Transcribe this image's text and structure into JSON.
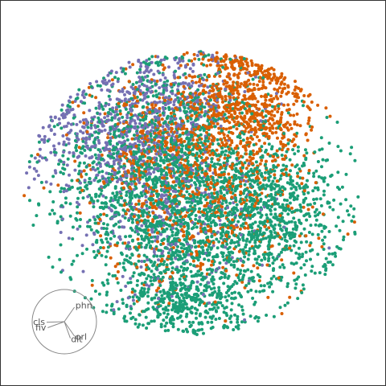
{
  "chart_data": {
    "type": "scatter",
    "grid": false,
    "legend": "none",
    "xlim": [
      -1,
      1
    ],
    "ylim": [
      -1,
      1
    ],
    "series": [
      {
        "color": "#d95f02",
        "clusters": [
          {
            "cx": 0.3,
            "cy": 0.52,
            "sx": 0.18,
            "sy": 0.18,
            "n": 700
          },
          {
            "cx": 0.05,
            "cy": 0.05,
            "sx": 0.3,
            "sy": 0.28,
            "n": 650
          },
          {
            "cx": -0.22,
            "cy": 0.28,
            "sx": 0.22,
            "sy": 0.22,
            "n": 250
          }
        ]
      },
      {
        "color": "#7570b3",
        "clusters": [
          {
            "cx": -0.42,
            "cy": 0.28,
            "sx": 0.24,
            "sy": 0.2,
            "n": 550
          },
          {
            "cx": -0.1,
            "cy": 0.52,
            "sx": 0.2,
            "sy": 0.16,
            "n": 300
          },
          {
            "cx": -0.12,
            "cy": -0.2,
            "sx": 0.24,
            "sy": 0.22,
            "n": 250
          }
        ]
      },
      {
        "color": "#1b9e77",
        "clusters": [
          {
            "cx": 0.05,
            "cy": -0.18,
            "sx": 0.34,
            "sy": 0.28,
            "n": 1300
          },
          {
            "cx": 0.46,
            "cy": -0.06,
            "sx": 0.2,
            "sy": 0.2,
            "n": 550
          },
          {
            "cx": -0.3,
            "cy": 0.1,
            "sx": 0.28,
            "sy": 0.26,
            "n": 650
          },
          {
            "cx": -0.1,
            "cy": 0.42,
            "sx": 0.22,
            "sy": 0.22,
            "n": 350
          },
          {
            "cx": -0.06,
            "cy": -0.62,
            "sx": 0.2,
            "sy": 0.12,
            "n": 350
          }
        ]
      }
    ],
    "radviz_axes": [
      {
        "label": "phn",
        "angle": 55
      },
      {
        "label": "cls",
        "angle": 182
      },
      {
        "label": "fiv",
        "angle": 200
      },
      {
        "label": "orl",
        "angle": 305
      },
      {
        "label": "dlt",
        "angle": 290
      }
    ]
  }
}
